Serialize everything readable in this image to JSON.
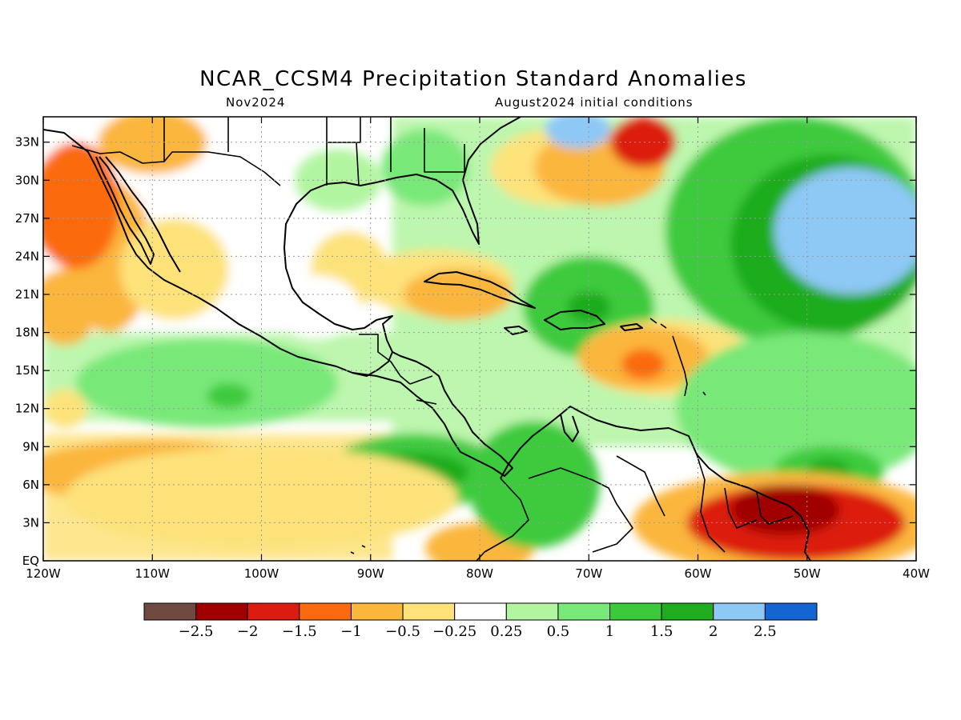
{
  "title": "NCAR_CCSM4 Precipitation Standard Anomalies",
  "subtitle_left": "Nov2024",
  "subtitle_right": "August2024 initial conditions",
  "chart_data": {
    "type": "heatmap",
    "variable": "Precipitation Standard Anomalies",
    "x_axis": {
      "range": [
        -120,
        -40
      ],
      "ticks": [
        {
          "value": -120,
          "label": "120W"
        },
        {
          "value": -110,
          "label": "110W"
        },
        {
          "value": -100,
          "label": "100W"
        },
        {
          "value": -90,
          "label": "90W"
        },
        {
          "value": -80,
          "label": "80W"
        },
        {
          "value": -70,
          "label": "70W"
        },
        {
          "value": -60,
          "label": "60W"
        },
        {
          "value": -50,
          "label": "50W"
        },
        {
          "value": -40,
          "label": "40W"
        }
      ]
    },
    "y_axis": {
      "range": [
        0,
        35
      ],
      "ticks": [
        {
          "value": 0,
          "label": "EQ"
        },
        {
          "value": 3,
          "label": "3N"
        },
        {
          "value": 6,
          "label": "6N"
        },
        {
          "value": 9,
          "label": "9N"
        },
        {
          "value": 12,
          "label": "12N"
        },
        {
          "value": 15,
          "label": "15N"
        },
        {
          "value": 18,
          "label": "18N"
        },
        {
          "value": 21,
          "label": "21N"
        },
        {
          "value": 24,
          "label": "24N"
        },
        {
          "value": 27,
          "label": "27N"
        },
        {
          "value": 30,
          "label": "30N"
        },
        {
          "value": 33,
          "label": "33N"
        }
      ]
    },
    "grid": true,
    "colorbar": {
      "colors": [
        "#6e4a40",
        "#a00000",
        "#dc1c10",
        "#fb6a10",
        "#fbb63c",
        "#fde27a",
        "#ffffff",
        "#b2f5a0",
        "#78e878",
        "#3cca3c",
        "#1fac1f",
        "#8ec8f5",
        "#1464d2"
      ],
      "labels": [
        "-2.5",
        "-2",
        "-1.5",
        "-1",
        "-0.5",
        "-0.25",
        "0.25",
        "0.5",
        "1",
        "1.5",
        "2",
        "2.5"
      ]
    },
    "field_features": [
      {
        "lon": -118,
        "lat": 20,
        "rx": 3,
        "ry": 3,
        "level": -1
      },
      {
        "lon": -114,
        "lat": 24,
        "rx": 4,
        "ry": 6,
        "level": -1
      },
      {
        "lon": -117,
        "lat": 28,
        "rx": 4,
        "ry": 5,
        "level": -1.5
      },
      {
        "lon": -108,
        "lat": 23,
        "rx": 5,
        "ry": 4,
        "level": -0.5
      },
      {
        "lon": -110,
        "lat": 33,
        "rx": 5,
        "ry": 2.5,
        "level": -1
      },
      {
        "lon": -92,
        "lat": 23,
        "rx": 3.5,
        "ry": 3,
        "level": -0.5
      },
      {
        "lon": -95,
        "lat": 20,
        "rx": 4,
        "ry": 2.5,
        "level": -0.25
      },
      {
        "lon": -93,
        "lat": 30,
        "rx": 4,
        "ry": 2.5,
        "level": 0.5
      },
      {
        "lon": -85,
        "lat": 31,
        "rx": 4,
        "ry": 3,
        "level": 1
      },
      {
        "lon": -84,
        "lat": 22,
        "rx": 7,
        "ry": 2.5,
        "level": -0.5
      },
      {
        "lon": -82,
        "lat": 21,
        "rx": 5,
        "ry": 2,
        "level": -1
      },
      {
        "lon": -73,
        "lat": 31,
        "rx": 6,
        "ry": 3,
        "level": -0.5
      },
      {
        "lon": -69,
        "lat": 31,
        "rx": 6,
        "ry": 3,
        "level": -1
      },
      {
        "lon": -65,
        "lat": 33,
        "rx": 3,
        "ry": 2,
        "level": -2
      },
      {
        "lon": -70,
        "lat": 20,
        "rx": 6,
        "ry": 4,
        "level": 1.5
      },
      {
        "lon": -70,
        "lat": 20,
        "rx": 2,
        "ry": 1.2,
        "level": 2
      },
      {
        "lon": -71,
        "lat": 34,
        "rx": 3,
        "ry": 1.5,
        "level": 2.5
      },
      {
        "lon": -63,
        "lat": 16,
        "rx": 8,
        "ry": 3,
        "level": -0.5
      },
      {
        "lon": -65,
        "lat": 16,
        "rx": 6,
        "ry": 2.5,
        "level": -1
      },
      {
        "lon": -65,
        "lat": 15.5,
        "rx": 2,
        "ry": 1.2,
        "level": -1.5
      },
      {
        "lon": -51,
        "lat": 26,
        "rx": 12,
        "ry": 9,
        "level": 1.5
      },
      {
        "lon": -48,
        "lat": 25,
        "rx": 9,
        "ry": 7,
        "level": 2
      },
      {
        "lon": -46,
        "lat": 26,
        "rx": 7,
        "ry": 5,
        "level": 2.5
      },
      {
        "lon": -50,
        "lat": 12,
        "rx": 12,
        "ry": 6,
        "level": 1
      },
      {
        "lon": -48,
        "lat": 7,
        "rx": 5,
        "ry": 2,
        "level": 1.5
      },
      {
        "lon": -48,
        "lat": 7,
        "rx": 2,
        "ry": 1,
        "level": 2
      },
      {
        "lon": -52,
        "lat": 3,
        "rx": 14,
        "ry": 4,
        "level": -1
      },
      {
        "lon": -51,
        "lat": 3,
        "rx": 10,
        "ry": 3,
        "level": -2
      },
      {
        "lon": -52,
        "lat": 4,
        "rx": 5,
        "ry": 2,
        "level": -2.5
      },
      {
        "lon": -80,
        "lat": 1,
        "rx": 5,
        "ry": 2,
        "level": -1
      },
      {
        "lon": -75,
        "lat": 6,
        "rx": 6,
        "ry": 5,
        "level": 1.5
      },
      {
        "lon": -86,
        "lat": 7,
        "rx": 8,
        "ry": 3,
        "level": 1.5
      },
      {
        "lon": -86,
        "lat": 7,
        "rx": 5,
        "ry": 1.5,
        "level": 2
      },
      {
        "lon": -105,
        "lat": 14,
        "rx": 12,
        "ry": 3.5,
        "level": 1
      },
      {
        "lon": -103,
        "lat": 13,
        "rx": 2,
        "ry": 1,
        "level": 1.5
      },
      {
        "lon": -110,
        "lat": 7,
        "rx": 12,
        "ry": 2.5,
        "level": -1
      },
      {
        "lon": -100,
        "lat": 5,
        "rx": 18,
        "ry": 4,
        "level": -0.5
      },
      {
        "lon": -118,
        "lat": 12,
        "rx": 2,
        "ry": 1.5,
        "level": -0.5
      }
    ],
    "dominant_background": [
      {
        "lon_range": [
          -120,
          -88
        ],
        "lat_range": [
          0,
          10
        ],
        "level": -0.5
      },
      {
        "lon_range": [
          -88,
          -40
        ],
        "lat_range": [
          9,
          35
        ],
        "level": 0.5
      },
      {
        "lon_range": [
          -120,
          -88
        ],
        "lat_range": [
          11,
          18
        ],
        "level": 0.5
      },
      {
        "lon_range": [
          -120,
          -90
        ],
        "lat_range": [
          18,
          35
        ],
        "level": -0.25
      }
    ]
  }
}
